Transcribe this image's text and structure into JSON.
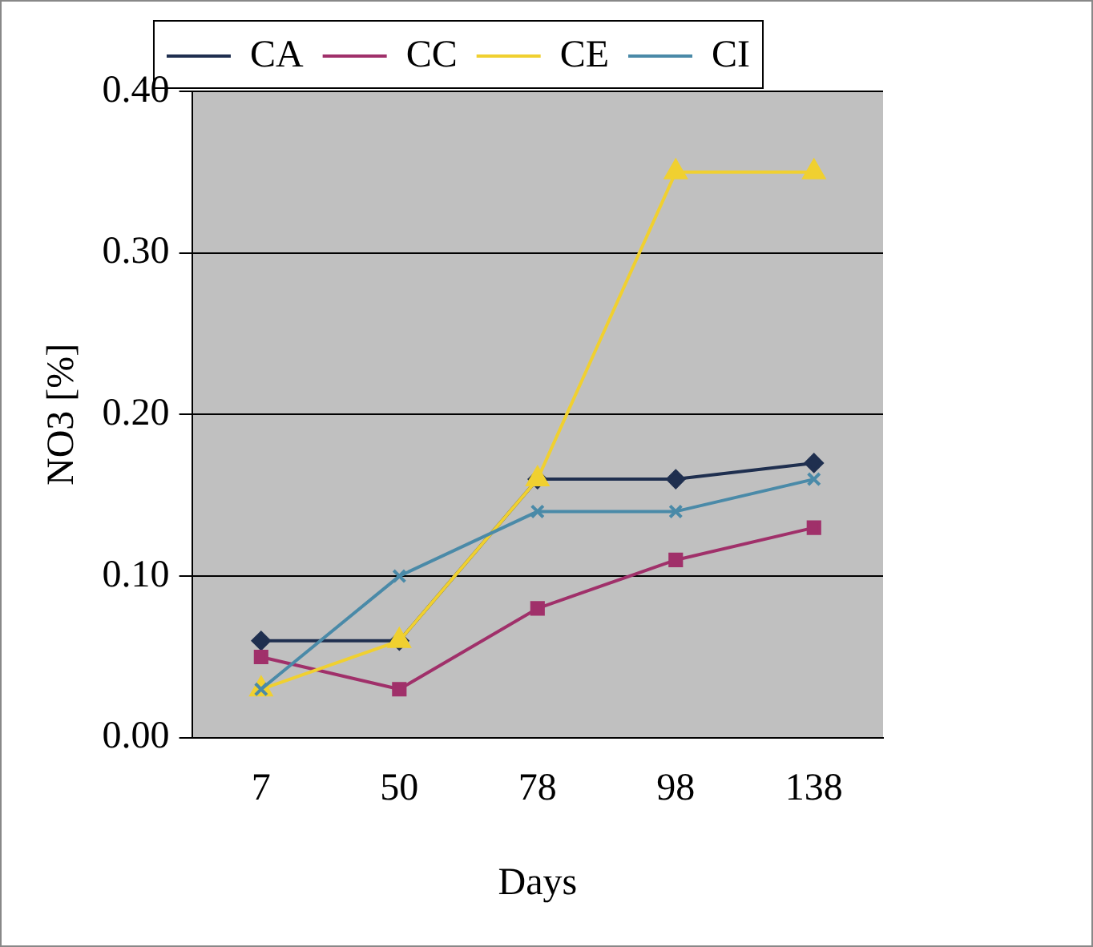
{
  "chart_data": {
    "type": "line",
    "xlabel": "Days",
    "ylabel": "NO3 [%]",
    "categories": [
      "7",
      "50",
      "78",
      "98",
      "138"
    ],
    "series": [
      {
        "name": "CA",
        "color": "#1f2f4f",
        "marker": "diamond",
        "values": [
          0.06,
          0.06,
          0.16,
          0.16,
          0.17
        ]
      },
      {
        "name": "CC",
        "color": "#a0306a",
        "marker": "square",
        "values": [
          0.05,
          0.03,
          0.08,
          0.11,
          0.13
        ]
      },
      {
        "name": "CE",
        "color": "#f0d030",
        "marker": "triangle",
        "values": [
          0.03,
          0.06,
          0.16,
          0.35,
          0.35
        ]
      },
      {
        "name": "CI",
        "color": "#4a8aa8",
        "marker": "cross",
        "values": [
          0.03,
          0.1,
          0.14,
          0.14,
          0.16
        ]
      }
    ],
    "ylim": [
      0,
      0.4
    ],
    "yticks": [
      {
        "value": 0,
        "label": "0.00"
      },
      {
        "value": 0.1,
        "label": "0.10"
      },
      {
        "value": 0.2,
        "label": "0.20"
      },
      {
        "value": 0.3,
        "label": "0.30"
      },
      {
        "value": 0.4,
        "label": "0.40"
      }
    ],
    "grid": "y",
    "legend": "top"
  }
}
